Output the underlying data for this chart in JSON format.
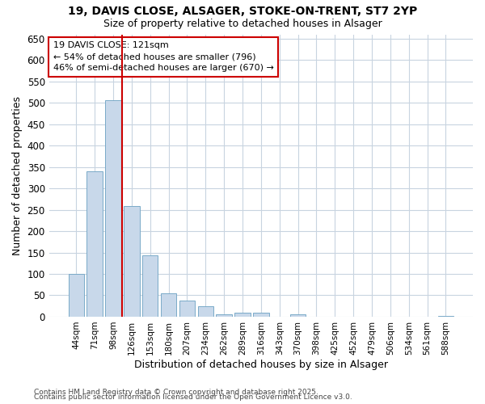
{
  "title1": "19, DAVIS CLOSE, ALSAGER, STOKE-ON-TRENT, ST7 2YP",
  "title2": "Size of property relative to detached houses in Alsager",
  "xlabel": "Distribution of detached houses by size in Alsager",
  "ylabel": "Number of detached properties",
  "categories": [
    "44sqm",
    "71sqm",
    "98sqm",
    "126sqm",
    "153sqm",
    "180sqm",
    "207sqm",
    "234sqm",
    "262sqm",
    "289sqm",
    "316sqm",
    "343sqm",
    "370sqm",
    "398sqm",
    "425sqm",
    "452sqm",
    "479sqm",
    "506sqm",
    "534sqm",
    "561sqm",
    "588sqm"
  ],
  "values": [
    100,
    340,
    507,
    258,
    143,
    55,
    38,
    24,
    5,
    10,
    10,
    0,
    5,
    0,
    0,
    0,
    0,
    0,
    0,
    0,
    2
  ],
  "bar_color": "#c8d8ea",
  "bar_edge_color": "#7aaac8",
  "grid_color": "#c8d4e0",
  "background_color": "#ffffff",
  "plot_bg_color": "#ffffff",
  "redline_color": "#cc0000",
  "annotation_text": "19 DAVIS CLOSE: 121sqm\n← 54% of detached houses are smaller (796)\n46% of semi-detached houses are larger (670) →",
  "annotation_box_color": "#ffffff",
  "annotation_box_edge": "#cc0000",
  "footer1": "Contains HM Land Registry data © Crown copyright and database right 2025.",
  "footer2": "Contains public sector information licensed under the Open Government Licence v3.0.",
  "ylim": [
    0,
    660
  ],
  "yticks": [
    0,
    50,
    100,
    150,
    200,
    250,
    300,
    350,
    400,
    450,
    500,
    550,
    600,
    650
  ]
}
